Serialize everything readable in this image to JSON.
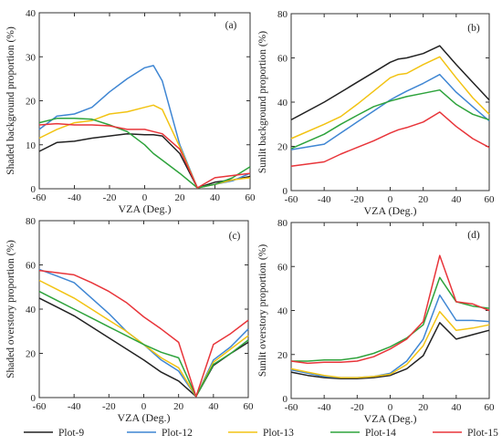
{
  "chart_data": [
    {
      "type": "line",
      "panel_label": "(a)",
      "xlabel": "VZA (Deg.)",
      "ylabel": "Shaded background proportion (%)",
      "xlim": [
        -60,
        60
      ],
      "ylim": [
        0,
        40
      ],
      "xticks": [
        -60,
        -40,
        -20,
        0,
        20,
        40,
        60
      ],
      "yticks": [
        0,
        10,
        20,
        30,
        40
      ],
      "x": [
        -60,
        -50,
        -40,
        -30,
        -20,
        -10,
        0,
        5,
        10,
        20,
        30,
        40,
        50,
        60
      ],
      "series": [
        {
          "name": "Plot-9",
          "color": "#222222",
          "values": [
            8.5,
            10.5,
            10.8,
            11.5,
            12.0,
            12.5,
            12.3,
            12.3,
            12.0,
            8.0,
            0.2,
            1.5,
            2.0,
            2.8
          ]
        },
        {
          "name": "Plot-12",
          "color": "#3f86d3",
          "values": [
            13.5,
            16.5,
            17.0,
            18.5,
            22.0,
            25.0,
            27.5,
            28.0,
            24.5,
            10.0,
            0.2,
            1.0,
            1.8,
            3.5
          ]
        },
        {
          "name": "Plot-13",
          "color": "#f2c313",
          "values": [
            11.5,
            13.5,
            15.0,
            15.5,
            17.0,
            17.5,
            18.5,
            19.0,
            18.0,
            9.5,
            0.2,
            1.0,
            2.0,
            2.5
          ]
        },
        {
          "name": "Plot-14",
          "color": "#2ea33c",
          "values": [
            15.0,
            16.0,
            16.0,
            15.8,
            14.5,
            13.0,
            10.0,
            8.0,
            6.5,
            3.5,
            0.2,
            1.0,
            2.5,
            5.0
          ]
        },
        {
          "name": "Plot-15",
          "color": "#e8353a",
          "values": [
            14.5,
            14.8,
            14.5,
            14.5,
            14.3,
            13.5,
            13.5,
            13.0,
            12.5,
            9.0,
            0.2,
            2.5,
            3.0,
            3.5
          ]
        }
      ]
    },
    {
      "type": "line",
      "panel_label": "(b)",
      "xlabel": "VZA (Deg.)",
      "ylabel": "Sunlit background proportion (%)",
      "xlim": [
        -60,
        60
      ],
      "ylim": [
        0,
        80
      ],
      "xticks": [
        -60,
        -40,
        -20,
        0,
        20,
        40,
        60
      ],
      "yticks": [
        0,
        20,
        40,
        60,
        80
      ],
      "x": [
        -60,
        -40,
        -30,
        -20,
        -10,
        0,
        5,
        10,
        20,
        30,
        40,
        50,
        60
      ],
      "series": [
        {
          "name": "Plot-9",
          "color": "#222222",
          "values": [
            32.0,
            40.0,
            44.5,
            49.0,
            53.5,
            58.0,
            59.5,
            60.0,
            62.0,
            65.5,
            57.0,
            49.0,
            41.0
          ]
        },
        {
          "name": "Plot-12",
          "color": "#3f86d3",
          "values": [
            18.5,
            21.0,
            26.0,
            31.0,
            36.0,
            41.0,
            43.0,
            45.0,
            48.5,
            52.5,
            44.5,
            38.0,
            31.5
          ]
        },
        {
          "name": "Plot-13",
          "color": "#f2c313",
          "values": [
            23.5,
            30.0,
            33.5,
            39.0,
            45.0,
            51.0,
            52.5,
            53.0,
            57.0,
            60.5,
            51.0,
            42.0,
            34.5
          ]
        },
        {
          "name": "Plot-14",
          "color": "#2ea33c",
          "values": [
            19.0,
            25.5,
            30.0,
            34.0,
            38.0,
            40.5,
            41.5,
            42.5,
            44.0,
            45.5,
            39.0,
            34.5,
            32.0
          ]
        },
        {
          "name": "Plot-15",
          "color": "#e8353a",
          "values": [
            11.0,
            13.0,
            16.5,
            19.5,
            22.5,
            26.0,
            27.5,
            28.5,
            31.0,
            35.5,
            29.0,
            23.5,
            19.5
          ]
        }
      ]
    },
    {
      "type": "line",
      "panel_label": "(c)",
      "xlabel": "VZA (Deg.)",
      "ylabel": "Shaded overstory proportion (%)",
      "xlim": [
        -60,
        60
      ],
      "ylim": [
        0,
        80
      ],
      "xticks": [
        -60,
        -40,
        -20,
        0,
        20,
        40,
        60
      ],
      "yticks": [
        0,
        20,
        40,
        60,
        80
      ],
      "x": [
        -60,
        -50,
        -40,
        -30,
        -20,
        -10,
        0,
        10,
        20,
        30,
        40,
        50,
        60
      ],
      "series": [
        {
          "name": "Plot-9",
          "color": "#222222",
          "values": [
            45.0,
            41.0,
            37.0,
            32.0,
            27.0,
            22.0,
            17.0,
            11.5,
            7.5,
            0.5,
            14.5,
            20.0,
            25.0
          ]
        },
        {
          "name": "Plot-12",
          "color": "#3f86d3",
          "values": [
            58.0,
            55.0,
            52.0,
            45.0,
            38.0,
            30.0,
            24.0,
            17.0,
            12.0,
            0.5,
            17.0,
            23.0,
            31.0
          ]
        },
        {
          "name": "Plot-13",
          "color": "#f2c313",
          "values": [
            53.0,
            49.0,
            45.0,
            40.0,
            35.0,
            30.0,
            24.0,
            18.0,
            13.5,
            0.5,
            16.0,
            22.0,
            28.0
          ]
        },
        {
          "name": "Plot-14",
          "color": "#2ea33c",
          "values": [
            48.0,
            44.0,
            40.0,
            36.0,
            32.0,
            28.0,
            24.0,
            20.5,
            18.0,
            0.5,
            15.0,
            20.0,
            26.0
          ]
        },
        {
          "name": "Plot-15",
          "color": "#e8353a",
          "values": [
            57.5,
            56.5,
            55.5,
            52.0,
            48.0,
            43.0,
            36.5,
            31.0,
            25.0,
            0.5,
            24.0,
            29.0,
            35.0
          ]
        }
      ]
    },
    {
      "type": "line",
      "panel_label": "(d)",
      "xlabel": "VZA (Deg.)",
      "ylabel": "Sunlit overstory proportion (%)",
      "xlim": [
        -60,
        60
      ],
      "ylim": [
        0,
        80
      ],
      "xticks": [
        -60,
        -40,
        -20,
        0,
        20,
        40,
        60
      ],
      "yticks": [
        0,
        20,
        40,
        60,
        80
      ],
      "x": [
        -60,
        -50,
        -40,
        -30,
        -20,
        -10,
        0,
        10,
        20,
        30,
        40,
        50,
        60
      ],
      "series": [
        {
          "name": "Plot-9",
          "color": "#222222",
          "values": [
            12.0,
            10.5,
            9.5,
            9.0,
            9.0,
            9.5,
            10.5,
            13.5,
            19.5,
            34.5,
            27.0,
            29.0,
            31.0
          ]
        },
        {
          "name": "Plot-12",
          "color": "#3f86d3",
          "values": [
            13.0,
            11.5,
            10.0,
            9.5,
            9.5,
            10.0,
            11.5,
            17.0,
            27.0,
            47.0,
            35.5,
            35.5,
            35.0
          ]
        },
        {
          "name": "Plot-13",
          "color": "#f2c313",
          "values": [
            13.5,
            12.0,
            10.5,
            9.5,
            9.5,
            10.0,
            11.0,
            15.5,
            24.0,
            39.5,
            31.0,
            32.0,
            33.5
          ]
        },
        {
          "name": "Plot-14",
          "color": "#2ea33c",
          "values": [
            17.0,
            17.0,
            17.5,
            17.5,
            18.5,
            20.5,
            23.5,
            27.5,
            33.5,
            55.0,
            44.0,
            42.0,
            41.0
          ]
        },
        {
          "name": "Plot-15",
          "color": "#e8353a",
          "values": [
            17.0,
            16.0,
            16.5,
            16.5,
            17.0,
            19.0,
            22.5,
            27.0,
            35.0,
            65.0,
            44.0,
            43.0,
            40.0
          ]
        }
      ]
    }
  ],
  "legend": {
    "placement": "bottom",
    "entries": [
      {
        "label": "Plot-9",
        "color": "#222222"
      },
      {
        "label": "Plot-12",
        "color": "#3f86d3"
      },
      {
        "label": "Plot-13",
        "color": "#f2c313"
      },
      {
        "label": "Plot-14",
        "color": "#2ea33c"
      },
      {
        "label": "Plot-15",
        "color": "#e8353a"
      }
    ]
  }
}
